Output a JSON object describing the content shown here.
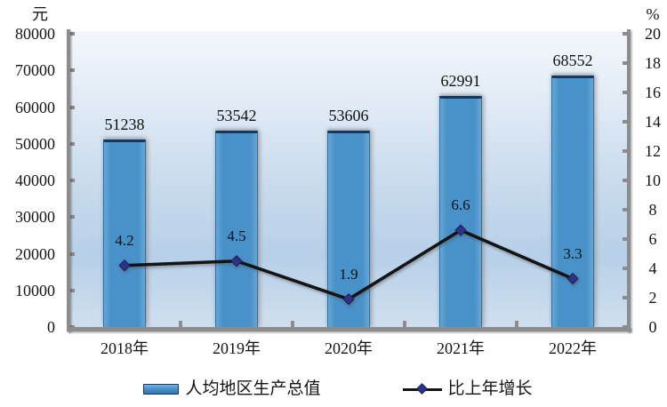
{
  "chart_data": {
    "type": "bar",
    "combo": "bar+line dual-axis",
    "categories": [
      "2018年",
      "2019年",
      "2020年",
      "2021年",
      "2022年"
    ],
    "series": [
      {
        "name": "人均地区生产总值",
        "type": "bar",
        "axis": "left",
        "values": [
          51238,
          53542,
          53606,
          62991,
          68552
        ]
      },
      {
        "name": "比上年增长",
        "type": "line",
        "axis": "right",
        "values": [
          4.2,
          4.5,
          1.9,
          6.6,
          3.3
        ]
      }
    ],
    "left_axis": {
      "unit": "元",
      "min": 0,
      "max": 80000,
      "step": 10000,
      "tick_labels": [
        "80000",
        "70000",
        "60000",
        "50000",
        "40000",
        "30000",
        "20000",
        "10000",
        "0"
      ]
    },
    "right_axis": {
      "unit": "%",
      "min": 0,
      "max": 20,
      "step": 2,
      "tick_labels": [
        "20",
        "18",
        "16",
        "14",
        "12",
        "10",
        "8",
        "6",
        "4",
        "2",
        "0"
      ]
    },
    "legend": {
      "position": "bottom",
      "items": [
        "人均地区生产总值",
        "比上年增长"
      ]
    },
    "grid": false,
    "colors": {
      "bar_fill": "#4892c9",
      "bar_border": "#17375e",
      "line": "#141414",
      "marker": "#2f3285",
      "axis": "#8c8c8c",
      "plot_bg_top": "#f3f7fb",
      "plot_bg_mid": "#b7d0e8",
      "plot_bg_bottom": "#cfdfef"
    }
  }
}
